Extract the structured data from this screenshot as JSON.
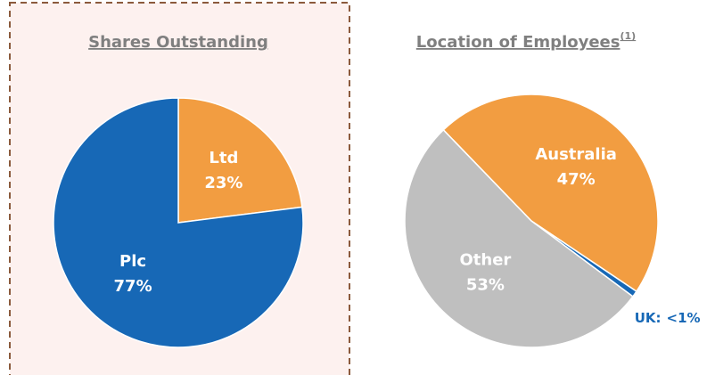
{
  "chart_data": [
    {
      "type": "pie",
      "title": "Shares Outstanding",
      "categories": [
        "Ltd",
        "Plc"
      ],
      "values": [
        23,
        77
      ],
      "value_labels": [
        "23%",
        "77%"
      ],
      "colors": [
        "#f29d41",
        "#1768b6"
      ]
    },
    {
      "type": "pie",
      "title": "Location of Employees",
      "title_note": "(1)",
      "categories": [
        "Australia",
        "UK:",
        "Other"
      ],
      "values": [
        47,
        0.8,
        53
      ],
      "value_labels": [
        "47%",
        "<1%",
        "53%"
      ],
      "colors": [
        "#f29d41",
        "#1768b6",
        "#bfbfbf"
      ]
    }
  ]
}
